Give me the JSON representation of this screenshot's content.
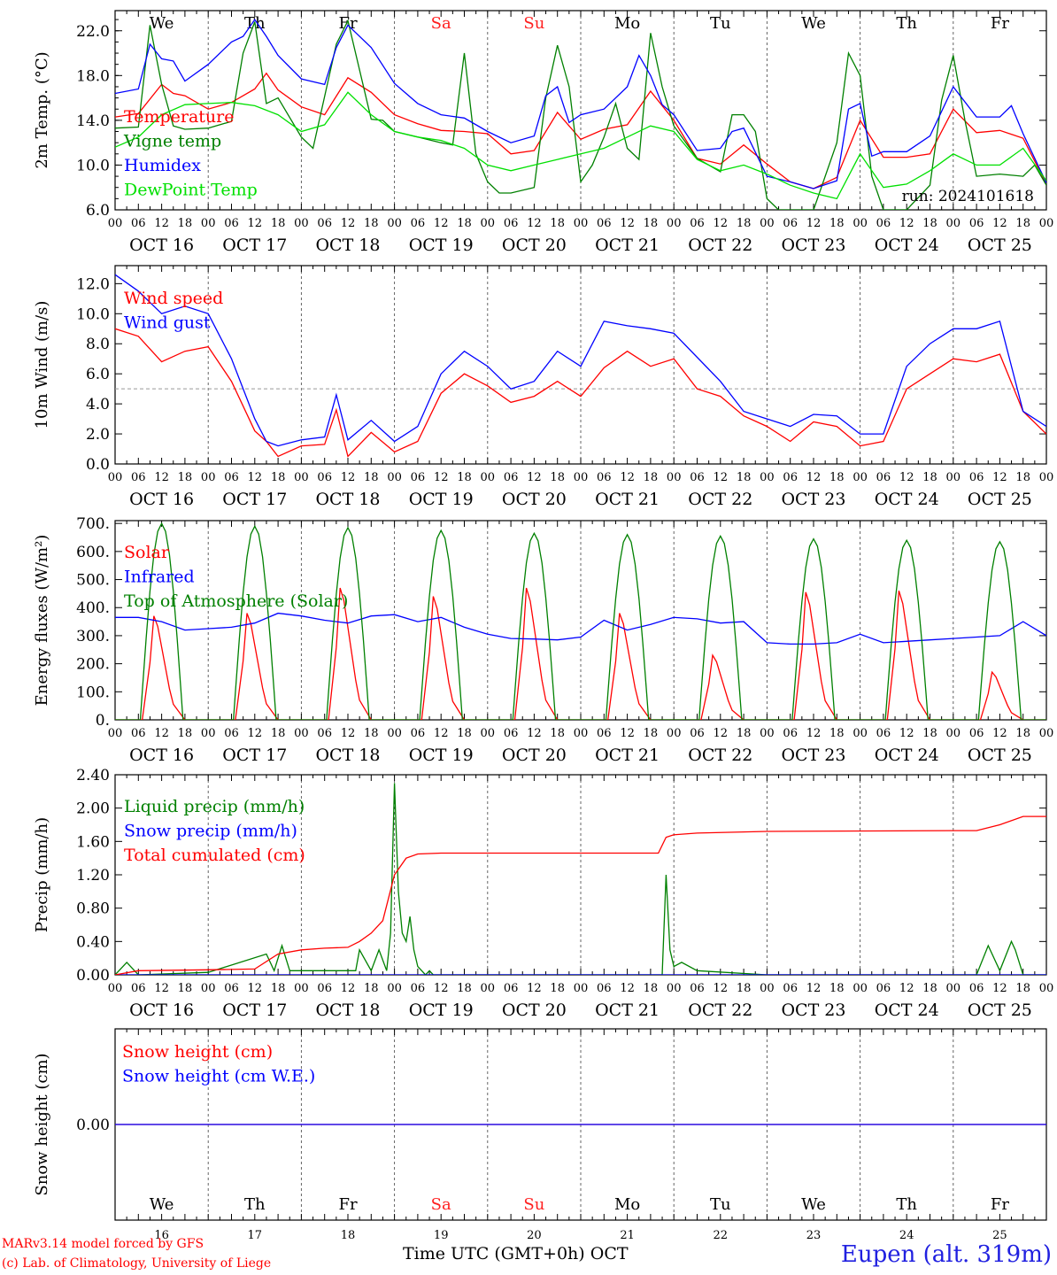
{
  "days": {
    "dates": [
      "OCT 16",
      "OCT 17",
      "OCT 18",
      "OCT 19",
      "OCT 20",
      "OCT 21",
      "OCT 22",
      "OCT 23",
      "OCT 24",
      "OCT 25"
    ],
    "weekdays": [
      "We",
      "Th",
      "Fr",
      "Sa",
      "Su",
      "Mo",
      "Tu",
      "We",
      "Th",
      "Fr"
    ],
    "day_numbers": [
      "16",
      "17",
      "18",
      "19",
      "20",
      "21",
      "22",
      "23",
      "24",
      "25"
    ],
    "weekend_color": "#ff2020",
    "weekday_color": "#000000",
    "hour_ticks": [
      "00",
      "06",
      "12",
      "18"
    ],
    "final_hour_label": "00"
  },
  "run_label": "run: 2024101618",
  "footer": {
    "model": "MARv3.14 model forced by GFS",
    "credit": "(c) Lab. of Climatology, University of Liege",
    "xaxis_title": "Time UTC (GMT+0h)",
    "month": "OCT",
    "station": "Eupen (alt. 319m)"
  },
  "chart_data": [
    {
      "type": "line",
      "ylabel": "2m Temp. (°C)",
      "ylim": [
        6,
        23.8
      ],
      "yticks": [
        6.0,
        10.0,
        14.0,
        18.0,
        22.0
      ],
      "ytick_labels": [
        "6.0",
        "10.0",
        "14.0",
        "18.0",
        "22.0"
      ],
      "x_unit": "hours since Oct 16 00 UTC",
      "xlim": [
        0,
        240
      ],
      "series": [
        {
          "name": "Temperature",
          "color": "#ff0000",
          "x": [
            0,
            6,
            12,
            15,
            18,
            24,
            30,
            36,
            39,
            42,
            48,
            54,
            60,
            66,
            72,
            78,
            84,
            90,
            96,
            102,
            108,
            114,
            120,
            126,
            132,
            138,
            144,
            150,
            156,
            162,
            168,
            174,
            180,
            186,
            192,
            198,
            204,
            210,
            216,
            222,
            228,
            234,
            240
          ],
          "values": [
            14.3,
            14.6,
            17.2,
            16.4,
            16.2,
            15.0,
            15.6,
            16.8,
            18.2,
            16.7,
            15.2,
            14.5,
            17.8,
            16.5,
            14.5,
            13.7,
            13.1,
            13.0,
            12.8,
            11.0,
            11.3,
            14.7,
            12.3,
            13.2,
            13.6,
            16.6,
            14.0,
            10.6,
            10.1,
            11.8,
            10.1,
            8.5,
            7.9,
            8.9,
            14.0,
            10.7,
            10.7,
            11.0,
            15.0,
            12.9,
            13.1,
            12.4,
            8.3
          ]
        },
        {
          "name": "Vigne temp",
          "color": "#008000",
          "x": [
            0,
            6,
            9,
            12,
            15,
            18,
            24,
            30,
            33,
            36,
            39,
            42,
            48,
            51,
            57,
            60,
            66,
            69,
            72,
            78,
            84,
            87,
            90,
            93,
            96,
            99,
            102,
            108,
            111,
            114,
            117,
            120,
            123,
            126,
            129,
            132,
            135,
            138,
            141,
            144,
            150,
            156,
            159,
            162,
            165,
            168,
            171,
            174,
            180,
            186,
            189,
            192,
            195,
            198,
            204,
            210,
            213,
            216,
            219,
            222,
            228,
            234,
            237,
            240
          ],
          "values": [
            13.3,
            13.4,
            22.5,
            17.2,
            13.5,
            13.2,
            13.3,
            13.9,
            20.0,
            22.8,
            15.5,
            16.0,
            12.5,
            11.5,
            20.8,
            22.9,
            14.1,
            14.0,
            13.0,
            12.5,
            12.0,
            11.8,
            20.0,
            11.0,
            8.5,
            7.5,
            7.5,
            8.0,
            16.0,
            20.7,
            17.0,
            8.5,
            10.0,
            12.5,
            15.5,
            11.5,
            10.5,
            21.8,
            17.0,
            13.5,
            10.6,
            9.4,
            14.5,
            14.5,
            13.0,
            7.0,
            6.0,
            6.0,
            6.0,
            12.0,
            20.0,
            18.0,
            9.0,
            6.0,
            6.0,
            8.2,
            15.8,
            19.8,
            14.0,
            9.0,
            9.2,
            9.0,
            10.0,
            8.2
          ]
        },
        {
          "name": "Humidex",
          "color": "#0000ff",
          "x": [
            0,
            6,
            9,
            12,
            15,
            18,
            24,
            30,
            33,
            36,
            39,
            42,
            48,
            54,
            57,
            60,
            66,
            72,
            78,
            84,
            90,
            96,
            102,
            108,
            111,
            114,
            117,
            120,
            126,
            132,
            135,
            138,
            141,
            144,
            150,
            156,
            159,
            162,
            168,
            174,
            180,
            186,
            189,
            192,
            195,
            198,
            204,
            210,
            216,
            222,
            228,
            231,
            234,
            240
          ],
          "values": [
            16.4,
            16.8,
            20.8,
            19.5,
            19.3,
            17.5,
            19.0,
            21.0,
            21.5,
            23.0,
            21.5,
            19.8,
            17.7,
            17.2,
            20.5,
            22.5,
            20.5,
            17.3,
            15.5,
            14.5,
            14.2,
            13.0,
            12.0,
            12.6,
            16.2,
            17.0,
            13.8,
            14.5,
            15.0,
            17.0,
            19.8,
            18.0,
            15.4,
            14.5,
            11.3,
            11.5,
            13.0,
            13.3,
            9.0,
            8.5,
            7.9,
            8.6,
            15.0,
            15.5,
            10.8,
            11.2,
            11.2,
            12.6,
            17.0,
            14.3,
            14.3,
            15.3,
            12.8,
            8.4
          ]
        },
        {
          "name": "DewPoint Temp",
          "color": "#00e000",
          "x": [
            0,
            6,
            12,
            18,
            24,
            30,
            36,
            42,
            48,
            54,
            60,
            66,
            72,
            78,
            84,
            90,
            96,
            102,
            108,
            114,
            120,
            126,
            132,
            138,
            144,
            150,
            156,
            162,
            168,
            174,
            180,
            186,
            192,
            198,
            204,
            210,
            216,
            222,
            228,
            234,
            240
          ],
          "values": [
            11.6,
            12.5,
            14.5,
            15.4,
            15.5,
            15.6,
            15.3,
            14.5,
            13.0,
            13.6,
            16.5,
            14.5,
            13.0,
            12.5,
            12.2,
            11.5,
            10.0,
            9.5,
            10.0,
            10.5,
            11.0,
            11.5,
            12.5,
            13.5,
            13.0,
            10.5,
            9.5,
            10.0,
            9.2,
            8.2,
            7.5,
            7.0,
            11.0,
            8.0,
            8.3,
            9.5,
            11.0,
            10.0,
            10.0,
            11.5,
            8.6
          ]
        }
      ]
    },
    {
      "type": "line",
      "ylabel": "10m Wind (m/s)",
      "ylim": [
        0,
        13.2
      ],
      "yticks": [
        0,
        2,
        4,
        6,
        8,
        10,
        12
      ],
      "ytick_labels": [
        "0.0",
        "2.0",
        "4.0",
        "6.0",
        "8.0",
        "10.0",
        "12.0"
      ],
      "reference_line": 5.0,
      "x_unit": "hours since Oct 16 00 UTC",
      "xlim": [
        0,
        240
      ],
      "series": [
        {
          "name": "Wind speed",
          "color": "#ff0000",
          "x": [
            0,
            6,
            12,
            18,
            24,
            30,
            36,
            39,
            42,
            48,
            54,
            57,
            60,
            66,
            72,
            78,
            84,
            90,
            96,
            102,
            108,
            114,
            120,
            126,
            132,
            138,
            144,
            150,
            156,
            162,
            168,
            174,
            180,
            186,
            192,
            198,
            204,
            210,
            216,
            222,
            228,
            234,
            240
          ],
          "values": [
            9.0,
            8.5,
            6.8,
            7.5,
            7.8,
            5.5,
            2.2,
            1.5,
            0.5,
            1.2,
            1.3,
            3.6,
            0.5,
            2.1,
            0.8,
            1.5,
            4.7,
            6.0,
            5.2,
            4.1,
            4.5,
            5.5,
            4.5,
            6.4,
            7.5,
            6.5,
            7.0,
            5.0,
            4.5,
            3.2,
            2.5,
            1.5,
            2.8,
            2.5,
            1.2,
            1.5,
            5.0,
            6.0,
            7.0,
            6.8,
            7.3,
            3.5,
            2.0
          ]
        },
        {
          "name": "Wind gust",
          "color": "#0000ff",
          "x": [
            0,
            6,
            12,
            18,
            24,
            30,
            36,
            39,
            42,
            48,
            54,
            57,
            60,
            66,
            72,
            78,
            84,
            90,
            96,
            102,
            108,
            114,
            120,
            126,
            132,
            138,
            144,
            150,
            156,
            162,
            168,
            174,
            180,
            186,
            192,
            198,
            204,
            210,
            216,
            222,
            228,
            234,
            240
          ],
          "values": [
            12.6,
            11.5,
            10.0,
            10.5,
            10.0,
            7.0,
            3.0,
            1.5,
            1.2,
            1.6,
            1.8,
            4.6,
            1.6,
            2.9,
            1.5,
            2.5,
            6.0,
            7.5,
            6.5,
            5.0,
            5.5,
            7.5,
            6.5,
            9.5,
            9.2,
            9.0,
            8.7,
            7.1,
            5.5,
            3.5,
            3.0,
            2.5,
            3.3,
            3.2,
            2.0,
            2.0,
            6.5,
            8.0,
            9.0,
            9.0,
            9.5,
            3.5,
            2.5
          ]
        }
      ]
    },
    {
      "type": "line",
      "ylabel": "Energy fluxes (W/m²)",
      "ylim": [
        0,
        710
      ],
      "yticks": [
        0,
        100,
        200,
        300,
        400,
        500,
        600,
        700
      ],
      "ytick_labels": [
        "0.",
        "100.",
        "200.",
        "300.",
        "400.",
        "500.",
        "600.",
        "700."
      ],
      "x_unit": "hours since Oct 16 00 UTC",
      "xlim": [
        0,
        240
      ],
      "solar_day_maxima": [
        370,
        380,
        470,
        440,
        470,
        380,
        230,
        455,
        460,
        170
      ],
      "toa_day_maxima": [
        700,
        690,
        685,
        675,
        665,
        660,
        655,
        645,
        640,
        635
      ],
      "series": [
        {
          "name": "Solar",
          "color": "#ff0000",
          "note_generated_from": "solar_day_maxima"
        },
        {
          "name": "Infrared",
          "color": "#0000ff",
          "x": [
            0,
            6,
            12,
            18,
            24,
            30,
            36,
            42,
            48,
            54,
            60,
            66,
            72,
            78,
            84,
            90,
            96,
            102,
            108,
            114,
            120,
            126,
            132,
            138,
            144,
            150,
            156,
            162,
            168,
            174,
            180,
            186,
            192,
            198,
            204,
            210,
            216,
            222,
            228,
            234,
            240
          ],
          "values": [
            365,
            365,
            350,
            320,
            325,
            330,
            345,
            380,
            370,
            355,
            345,
            370,
            375,
            350,
            365,
            330,
            305,
            290,
            288,
            285,
            295,
            355,
            320,
            340,
            365,
            360,
            345,
            350,
            275,
            270,
            270,
            275,
            305,
            275,
            280,
            285,
            290,
            295,
            300,
            350,
            300
          ]
        },
        {
          "name": "Top of Atmosphere (Solar)",
          "color": "#008000",
          "note_generated_from": "toa_day_maxima"
        }
      ]
    },
    {
      "type": "line",
      "ylabel": "Precip (mm/h)",
      "ylim": [
        0,
        2.4
      ],
      "yticks": [
        0,
        0.4,
        0.8,
        1.2,
        1.6,
        2.0,
        2.4
      ],
      "ytick_labels": [
        "0.00",
        "0.40",
        "0.80",
        "1.20",
        "1.60",
        "2.00",
        "2.40"
      ],
      "x_unit": "hours since Oct 16 00 UTC",
      "xlim": [
        0,
        240
      ],
      "series": [
        {
          "name": "Liquid precip (mm/h)",
          "color": "#008000",
          "x": [
            0,
            3,
            6,
            24,
            39,
            41,
            43,
            45,
            48,
            54,
            62,
            63,
            66,
            68,
            70,
            71,
            72,
            73,
            74,
            75,
            76,
            77,
            78,
            80,
            81,
            82,
            84,
            90,
            140,
            141,
            142,
            143,
            144,
            146,
            150,
            168,
            180,
            222,
            225,
            228,
            231,
            232,
            234,
            240
          ],
          "values": [
            0,
            0.15,
            0,
            0.03,
            0.25,
            0.05,
            0.35,
            0.05,
            0.05,
            0.05,
            0.05,
            0.3,
            0.05,
            0.3,
            0.05,
            0.5,
            2.3,
            1.0,
            0.5,
            0.4,
            0.7,
            0.3,
            0.1,
            0,
            0.05,
            0,
            0,
            0,
            0,
            0,
            1.2,
            0.3,
            0.1,
            0.15,
            0.05,
            0,
            0,
            0,
            0.35,
            0.05,
            0.4,
            0.3,
            0,
            0
          ]
        },
        {
          "name": "Snow precip (mm/h)",
          "color": "#0000ff",
          "x": [
            0,
            240
          ],
          "values": [
            0,
            0
          ]
        },
        {
          "name": "Total cumulated (cm)",
          "color": "#ff0000",
          "x": [
            0,
            6,
            24,
            36,
            42,
            48,
            54,
            60,
            63,
            66,
            69,
            72,
            75,
            78,
            84,
            90,
            140,
            142,
            144,
            150,
            168,
            216,
            222,
            228,
            234,
            240
          ],
          "values": [
            0,
            0.05,
            0.06,
            0.07,
            0.25,
            0.3,
            0.32,
            0.33,
            0.4,
            0.5,
            0.65,
            1.2,
            1.4,
            1.45,
            1.46,
            1.46,
            1.46,
            1.65,
            1.68,
            1.7,
            1.72,
            1.73,
            1.73,
            1.8,
            1.9,
            1.9
          ]
        }
      ]
    },
    {
      "type": "line",
      "ylabel": "Snow height (cm)",
      "ylim": [
        -1,
        1
      ],
      "yticks": [
        0
      ],
      "ytick_labels": [
        "0.00"
      ],
      "x_unit": "hours since Oct 16 00 UTC",
      "xlim": [
        0,
        240
      ],
      "series": [
        {
          "name": "Snow height (cm)",
          "color": "#ff0000",
          "x": [
            0,
            240
          ],
          "values": [
            0,
            0
          ]
        },
        {
          "name": "Snow height (cm W.E.)",
          "color": "#0000ff",
          "x": [
            0,
            240
          ],
          "values": [
            0,
            0
          ]
        }
      ]
    }
  ]
}
